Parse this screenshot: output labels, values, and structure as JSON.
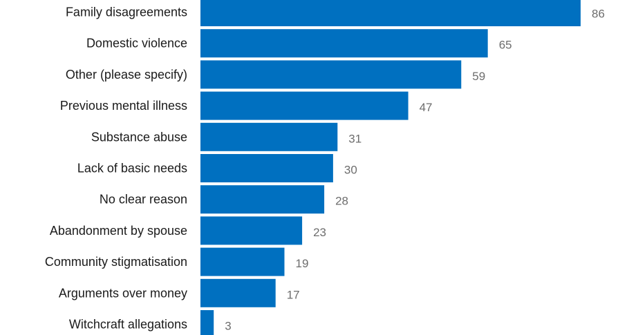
{
  "chart_data": {
    "type": "bar",
    "orientation": "horizontal",
    "categories": [
      "Family disagreements",
      "Domestic violence",
      "Other (please specify)",
      "Previous mental illness",
      "Substance abuse",
      "Lack of basic needs",
      "No clear reason",
      "Abandonment by spouse",
      "Community stigmatisation",
      "Arguments over money",
      "Witchcraft allegations"
    ],
    "values": [
      86,
      65,
      59,
      47,
      31,
      30,
      28,
      23,
      19,
      17,
      3
    ],
    "data_labels": [
      "86",
      "65",
      "59",
      "47",
      "31",
      "30",
      "28",
      "23",
      "19",
      "17",
      "3"
    ],
    "xlim": [
      0,
      86
    ],
    "grid": false,
    "legend": "none",
    "colors": {
      "bar": "#0070c0",
      "category_text": "#1a1a1a",
      "value_text": "#6d6d6d"
    }
  }
}
